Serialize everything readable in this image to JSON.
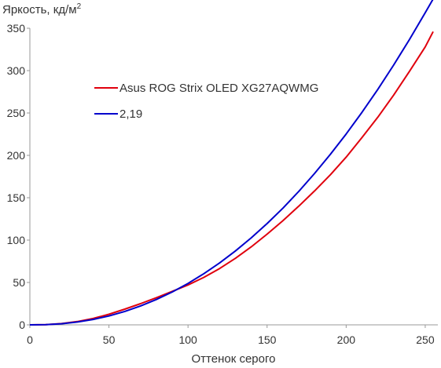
{
  "chart_data": {
    "type": "line",
    "xlabel": "Оттенок серого",
    "ylabel": "Яркость, кд/м",
    "ylabel_superscript": "2",
    "xlim": [
      0,
      255
    ],
    "ylim": [
      0,
      350
    ],
    "x_ticks": [
      "0",
      "50",
      "100",
      "150",
      "200",
      "250"
    ],
    "y_ticks": [
      "0",
      "50",
      "100",
      "150",
      "200",
      "250",
      "300",
      "350"
    ],
    "grid": false,
    "legend_position": "upper-left",
    "series": [
      {
        "name": "Asus ROG Strix OLED XG27AQWMG",
        "color": "#e0000d",
        "x": [
          0,
          10,
          20,
          30,
          40,
          50,
          60,
          70,
          80,
          90,
          100,
          110,
          120,
          130,
          140,
          150,
          160,
          170,
          180,
          190,
          200,
          210,
          220,
          230,
          240,
          250,
          255
        ],
        "y": [
          0,
          0.3,
          1.5,
          3.9,
          7.5,
          12.5,
          18.5,
          25,
          32,
          39.5,
          47,
          56,
          66.5,
          78.5,
          92,
          107,
          123,
          140,
          158,
          177,
          198,
          221,
          245,
          271,
          299,
          328,
          346
        ]
      },
      {
        "name": "2,19",
        "color": "#0000cc",
        "x": [
          0,
          10,
          20,
          30,
          40,
          50,
          60,
          70,
          80,
          90,
          100,
          110,
          120,
          130,
          140,
          150,
          160,
          170,
          180,
          190,
          200,
          210,
          220,
          230,
          240,
          250,
          255
        ],
        "y": [
          0,
          0.3,
          1.3,
          3.3,
          6.4,
          10.5,
          15.8,
          22.3,
          29.9,
          38.8,
          48.9,
          60.4,
          73.1,
          87.2,
          102.7,
          119.5,
          137.7,
          157.4,
          178.6,
          201.2,
          225.3,
          250.8,
          277.9,
          306.5,
          336.6,
          368.2,
          384.5
        ]
      }
    ]
  }
}
